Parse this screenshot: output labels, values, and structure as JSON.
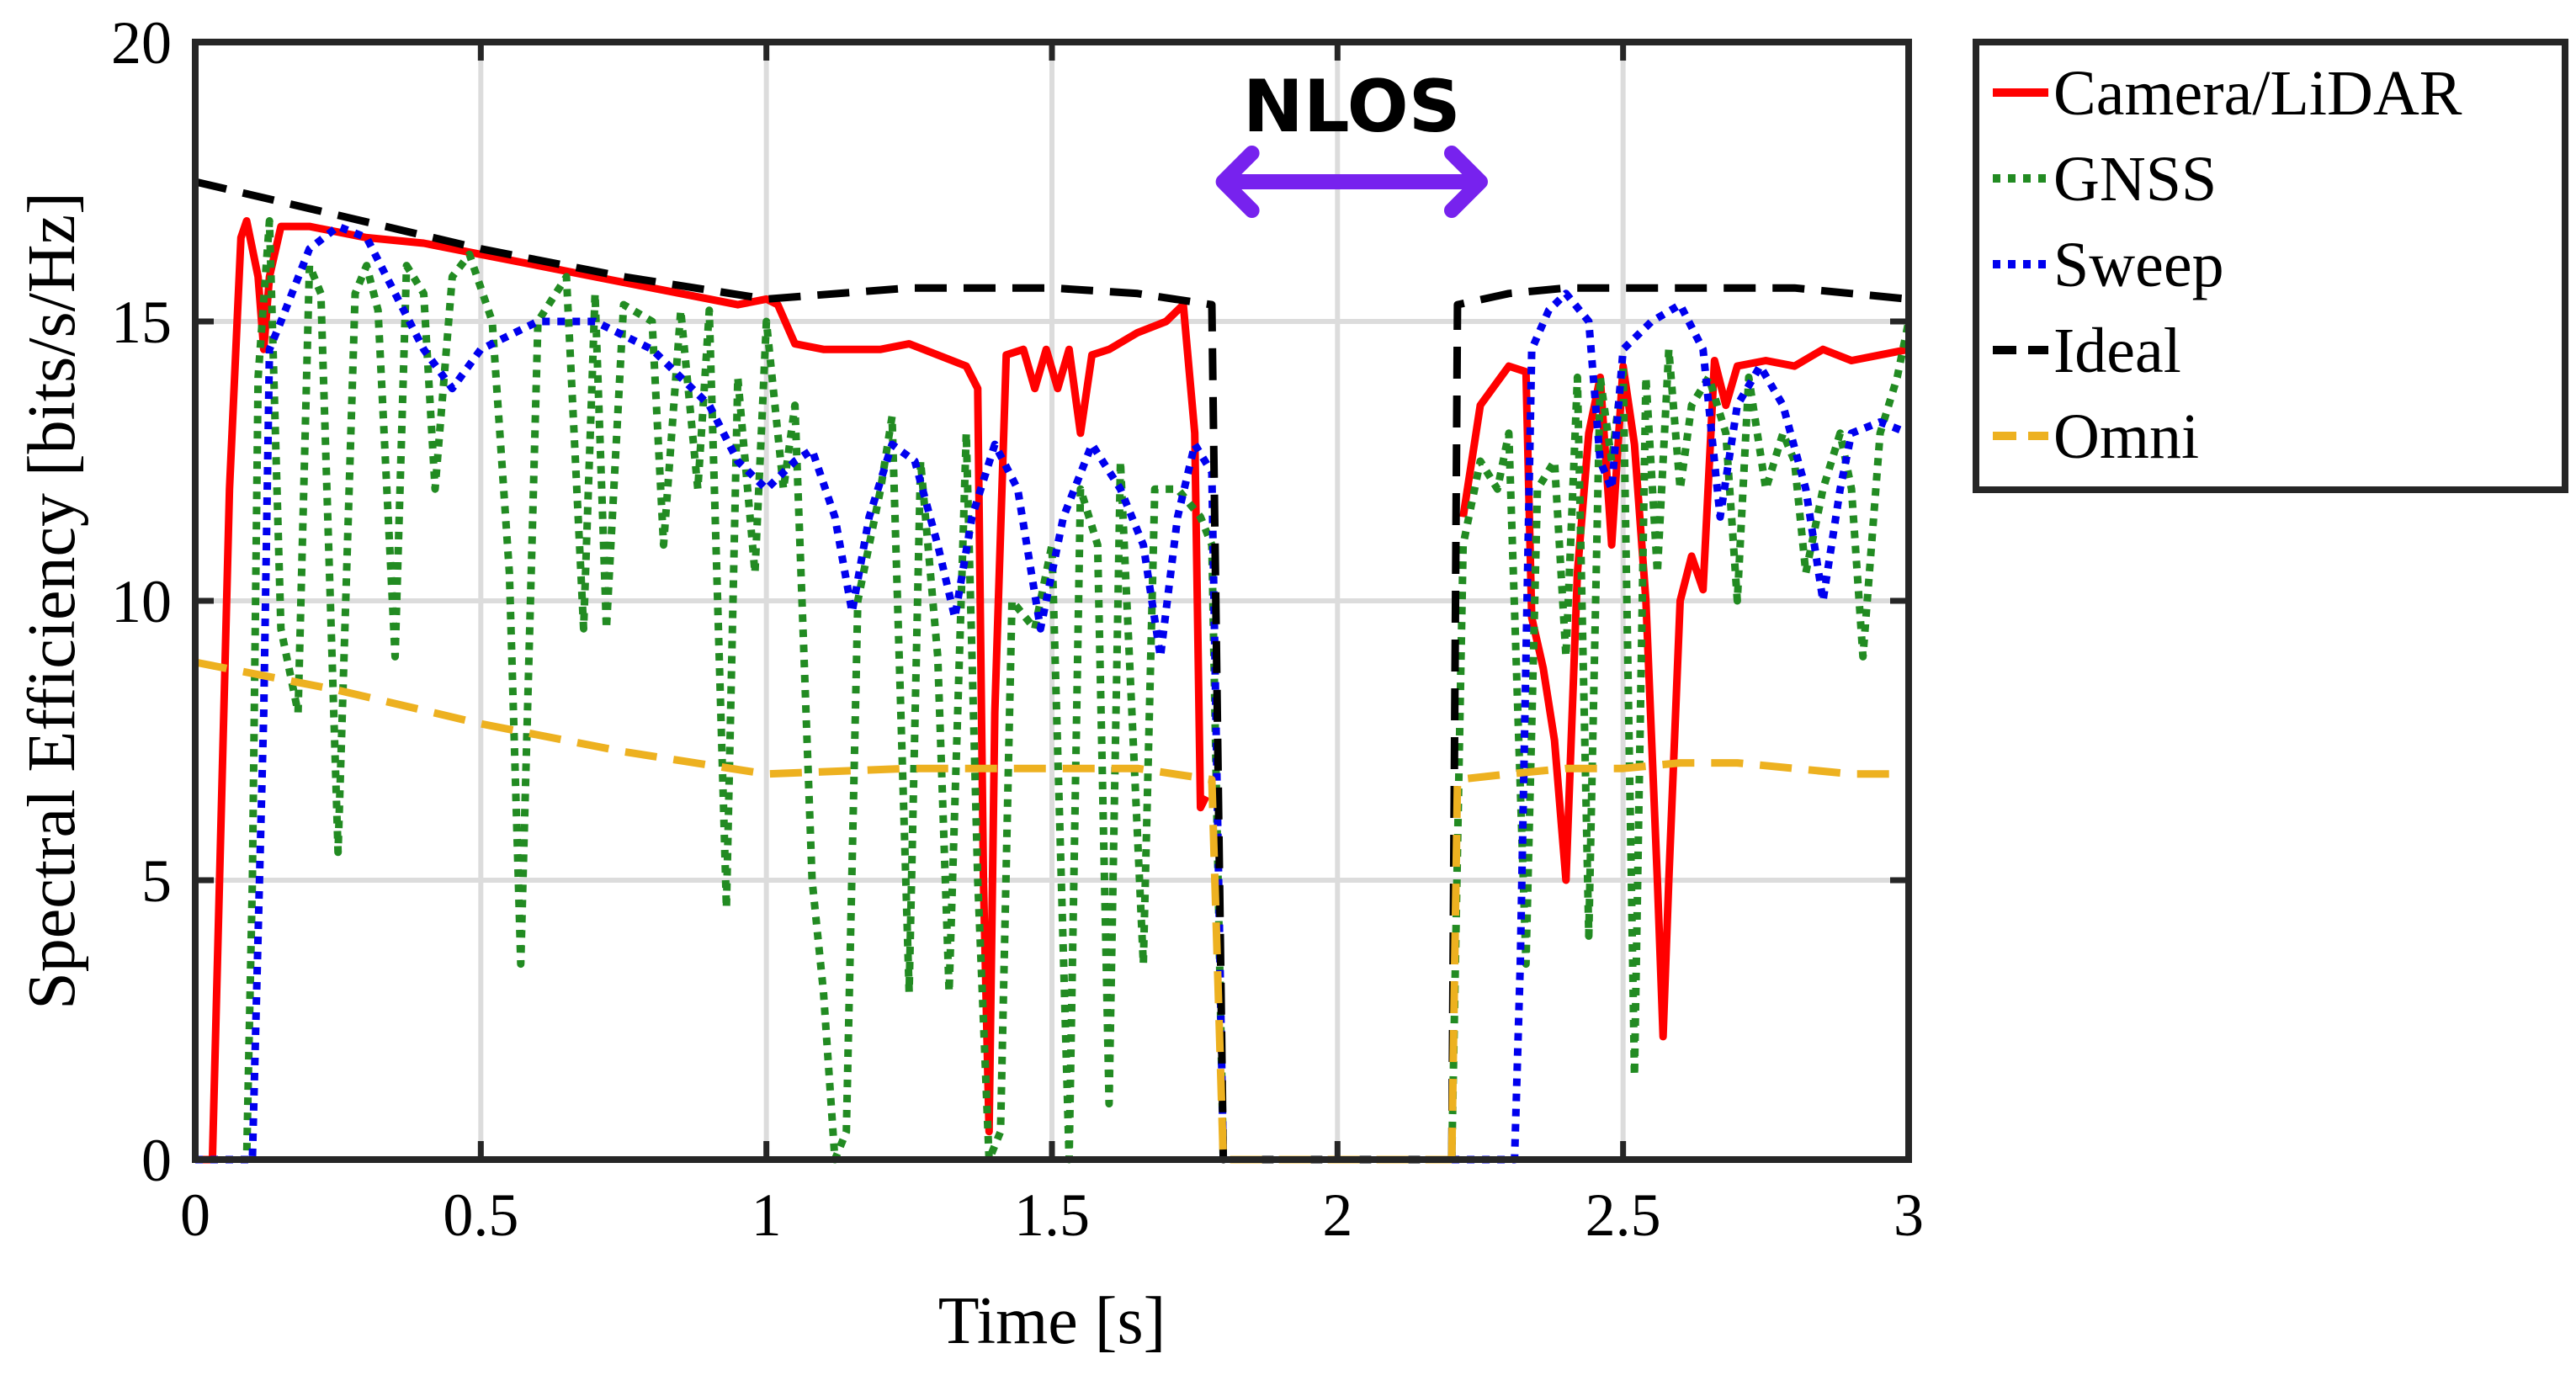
{
  "chart_data": {
    "type": "line",
    "title": "",
    "xlabel": "Time [s]",
    "ylabel": "Spectral Efficiency [bits/s/Hz]",
    "xlim": [
      0,
      3
    ],
    "ylim": [
      0,
      20
    ],
    "xticks": [
      0,
      0.5,
      1,
      1.5,
      2,
      2.5,
      3
    ],
    "xtick_labels": [
      "0",
      "0.5",
      "1",
      "1.5",
      "2",
      "2.5",
      "3"
    ],
    "yticks": [
      0,
      5,
      10,
      15,
      20
    ],
    "ytick_labels": [
      "0",
      "5",
      "10",
      "15",
      "20"
    ],
    "grid": true,
    "legend_position": "outside-top-right",
    "annotation": {
      "text": "NLOS",
      "x_start": 1.8,
      "x_end": 2.25,
      "y": 17.5,
      "color": "#7722ee"
    },
    "series": [
      {
        "name": "Camera/LiDAR",
        "color": "#ff0000",
        "style": "solid",
        "points": [
          [
            0,
            0
          ],
          [
            0.03,
            0
          ],
          [
            0.06,
            12
          ],
          [
            0.08,
            16.5
          ],
          [
            0.09,
            16.8
          ],
          [
            0.11,
            15.8
          ],
          [
            0.12,
            14.5
          ],
          [
            0.13,
            15.8
          ],
          [
            0.15,
            16.7
          ],
          [
            0.2,
            16.7
          ],
          [
            0.3,
            16.5
          ],
          [
            0.4,
            16.4
          ],
          [
            0.5,
            16.2
          ],
          [
            0.6,
            16.0
          ],
          [
            0.7,
            15.8
          ],
          [
            0.8,
            15.6
          ],
          [
            0.9,
            15.4
          ],
          [
            0.95,
            15.3
          ],
          [
            1.0,
            15.4
          ],
          [
            1.02,
            15.3
          ],
          [
            1.05,
            14.6
          ],
          [
            1.1,
            14.5
          ],
          [
            1.2,
            14.5
          ],
          [
            1.25,
            14.6
          ],
          [
            1.3,
            14.4
          ],
          [
            1.35,
            14.2
          ],
          [
            1.37,
            13.8
          ],
          [
            1.38,
            5
          ],
          [
            1.39,
            0.5
          ],
          [
            1.4,
            8
          ],
          [
            1.42,
            14.4
          ],
          [
            1.45,
            14.5
          ],
          [
            1.47,
            13.8
          ],
          [
            1.49,
            14.5
          ],
          [
            1.51,
            13.8
          ],
          [
            1.53,
            14.5
          ],
          [
            1.55,
            13.0
          ],
          [
            1.57,
            14.4
          ],
          [
            1.6,
            14.5
          ],
          [
            1.65,
            14.8
          ],
          [
            1.7,
            15.0
          ],
          [
            1.73,
            15.3
          ],
          [
            1.75,
            13.0
          ],
          [
            1.76,
            6.3
          ],
          [
            1.77,
            6.5
          ]
        ]
      },
      {
        "name": "GNSS",
        "color": "#228b22",
        "style": "dotted",
        "points": [
          [
            0,
            0
          ],
          [
            0.09,
            0
          ],
          [
            0.1,
            5
          ],
          [
            0.11,
            14
          ],
          [
            0.13,
            16.8
          ],
          [
            0.15,
            9.5
          ],
          [
            0.18,
            8.0
          ],
          [
            0.2,
            16.0
          ],
          [
            0.22,
            15.5
          ],
          [
            0.25,
            5.5
          ],
          [
            0.28,
            15.5
          ],
          [
            0.3,
            16.0
          ],
          [
            0.32,
            15.2
          ],
          [
            0.35,
            9.0
          ],
          [
            0.37,
            16.0
          ],
          [
            0.4,
            15.5
          ],
          [
            0.42,
            12.0
          ],
          [
            0.45,
            15.8
          ],
          [
            0.48,
            16.2
          ],
          [
            0.52,
            15.0
          ],
          [
            0.55,
            10.5
          ],
          [
            0.57,
            3.5
          ],
          [
            0.6,
            15.0
          ],
          [
            0.65,
            15.8
          ],
          [
            0.68,
            9.5
          ],
          [
            0.7,
            15.5
          ],
          [
            0.72,
            9.5
          ],
          [
            0.75,
            15.3
          ],
          [
            0.8,
            15.0
          ],
          [
            0.82,
            11.0
          ],
          [
            0.85,
            15.2
          ],
          [
            0.88,
            12.0
          ],
          [
            0.9,
            15.2
          ],
          [
            0.93,
            4.5
          ],
          [
            0.95,
            14.0
          ],
          [
            0.98,
            10.5
          ],
          [
            1.0,
            15.0
          ],
          [
            1.03,
            12.0
          ],
          [
            1.05,
            13.5
          ],
          [
            1.08,
            5.0
          ],
          [
            1.1,
            3.0
          ],
          [
            1.12,
            0
          ],
          [
            1.14,
            0.5
          ],
          [
            1.16,
            10.0
          ],
          [
            1.2,
            12.0
          ],
          [
            1.22,
            13.3
          ],
          [
            1.25,
            3.0
          ],
          [
            1.27,
            12.5
          ],
          [
            1.3,
            9.0
          ],
          [
            1.32,
            3.0
          ],
          [
            1.35,
            13.0
          ],
          [
            1.37,
            5.0
          ],
          [
            1.39,
            0
          ],
          [
            1.41,
            0.5
          ],
          [
            1.43,
            10.0
          ],
          [
            1.47,
            9.5
          ],
          [
            1.5,
            11.0
          ],
          [
            1.53,
            0
          ],
          [
            1.55,
            12.0
          ],
          [
            1.58,
            11.0
          ],
          [
            1.6,
            1.0
          ],
          [
            1.62,
            12.5
          ],
          [
            1.66,
            3.5
          ],
          [
            1.68,
            12.0
          ],
          [
            1.72,
            12.0
          ],
          [
            1.76,
            11.5
          ],
          [
            1.78,
            11.0
          ],
          [
            1.8,
            0
          ]
        ]
      },
      {
        "name": "Sweep",
        "color": "#0000ee",
        "style": "dotted",
        "points": [
          [
            0,
            0
          ],
          [
            0.1,
            0
          ],
          [
            0.12,
            8
          ],
          [
            0.13,
            14.5
          ],
          [
            0.15,
            15.0
          ],
          [
            0.2,
            16.3
          ],
          [
            0.25,
            16.7
          ],
          [
            0.3,
            16.5
          ],
          [
            0.35,
            15.5
          ],
          [
            0.4,
            14.5
          ],
          [
            0.45,
            13.8
          ],
          [
            0.5,
            14.5
          ],
          [
            0.6,
            15.0
          ],
          [
            0.7,
            15.0
          ],
          [
            0.8,
            14.5
          ],
          [
            0.9,
            13.5
          ],
          [
            0.95,
            12.5
          ],
          [
            1.0,
            12.0
          ],
          [
            1.05,
            12.5
          ],
          [
            1.08,
            12.7
          ],
          [
            1.12,
            11.5
          ],
          [
            1.15,
            9.8
          ],
          [
            1.18,
            11.5
          ],
          [
            1.22,
            12.8
          ],
          [
            1.26,
            12.5
          ],
          [
            1.3,
            11.0
          ],
          [
            1.33,
            9.7
          ],
          [
            1.36,
            11.5
          ],
          [
            1.4,
            12.8
          ],
          [
            1.44,
            12.0
          ],
          [
            1.48,
            9.5
          ],
          [
            1.52,
            11.5
          ],
          [
            1.57,
            12.8
          ],
          [
            1.62,
            12.0
          ],
          [
            1.66,
            11.0
          ],
          [
            1.69,
            9.0
          ],
          [
            1.72,
            11.5
          ],
          [
            1.75,
            12.8
          ],
          [
            1.78,
            12.3
          ],
          [
            1.8,
            0
          ]
        ]
      },
      {
        "name": "Ideal",
        "color": "#000000",
        "style": "dashed",
        "points": [
          [
            0,
            17.5
          ],
          [
            0.25,
            16.9
          ],
          [
            0.5,
            16.3
          ],
          [
            0.75,
            15.8
          ],
          [
            1.0,
            15.4
          ],
          [
            1.25,
            15.6
          ],
          [
            1.5,
            15.6
          ],
          [
            1.65,
            15.5
          ],
          [
            1.78,
            15.3
          ],
          [
            1.8,
            0
          ],
          [
            2.2,
            0
          ]
        ]
      },
      {
        "name": "Omni",
        "color": "#edb120",
        "style": "dashed",
        "points": [
          [
            0,
            8.9
          ],
          [
            0.25,
            8.4
          ],
          [
            0.5,
            7.8
          ],
          [
            0.75,
            7.3
          ],
          [
            1.0,
            6.9
          ],
          [
            1.25,
            7.0
          ],
          [
            1.5,
            7.0
          ],
          [
            1.65,
            7.0
          ],
          [
            1.78,
            6.8
          ],
          [
            1.8,
            0
          ],
          [
            2.2,
            0
          ]
        ]
      },
      {
        "name": "Camera/LiDAR",
        "color": "#ff0000",
        "style": "solid",
        "points": [
          [
            2.22,
            11.5
          ],
          [
            2.25,
            13.5
          ],
          [
            2.3,
            14.2
          ],
          [
            2.33,
            14.1
          ],
          [
            2.34,
            9.7
          ],
          [
            2.36,
            8.8
          ],
          [
            2.38,
            7.5
          ],
          [
            2.4,
            5.0
          ],
          [
            2.42,
            10.5
          ],
          [
            2.44,
            13.0
          ],
          [
            2.46,
            14.0
          ],
          [
            2.48,
            11.0
          ],
          [
            2.5,
            14.2
          ],
          [
            2.52,
            12.8
          ],
          [
            2.54,
            10.0
          ],
          [
            2.56,
            5.0
          ],
          [
            2.57,
            2.2
          ],
          [
            2.58,
            5.0
          ],
          [
            2.6,
            10.0
          ],
          [
            2.62,
            10.8
          ],
          [
            2.64,
            10.2
          ],
          [
            2.66,
            14.3
          ],
          [
            2.68,
            13.5
          ],
          [
            2.7,
            14.2
          ],
          [
            2.75,
            14.3
          ],
          [
            2.8,
            14.2
          ],
          [
            2.85,
            14.5
          ],
          [
            2.9,
            14.3
          ],
          [
            2.95,
            14.4
          ],
          [
            3.0,
            14.5
          ]
        ]
      },
      {
        "name": "GNSS",
        "color": "#228b22",
        "style": "dotted",
        "points": [
          [
            2.2,
            0
          ],
          [
            2.22,
            11.0
          ],
          [
            2.25,
            12.5
          ],
          [
            2.28,
            12.0
          ],
          [
            2.3,
            13.0
          ],
          [
            2.33,
            3.5
          ],
          [
            2.35,
            12.0
          ],
          [
            2.38,
            12.5
          ],
          [
            2.4,
            9.0
          ],
          [
            2.42,
            14.0
          ],
          [
            2.44,
            4.0
          ],
          [
            2.46,
            14.0
          ],
          [
            2.48,
            12.5
          ],
          [
            2.5,
            14.2
          ],
          [
            2.52,
            1.5
          ],
          [
            2.54,
            14.0
          ],
          [
            2.56,
            10.5
          ],
          [
            2.58,
            14.5
          ],
          [
            2.6,
            12.0
          ],
          [
            2.62,
            13.5
          ],
          [
            2.65,
            14.0
          ],
          [
            2.68,
            13.0
          ],
          [
            2.7,
            10.0
          ],
          [
            2.72,
            14.0
          ],
          [
            2.75,
            12.0
          ],
          [
            2.78,
            13.0
          ],
          [
            2.8,
            12.5
          ],
          [
            2.82,
            10.5
          ],
          [
            2.85,
            12.0
          ],
          [
            2.88,
            13.0
          ],
          [
            2.9,
            12.0
          ],
          [
            2.92,
            9.0
          ],
          [
            2.95,
            13.0
          ],
          [
            2.98,
            14.0
          ],
          [
            3.0,
            15.0
          ]
        ]
      },
      {
        "name": "Sweep",
        "color": "#0000ee",
        "style": "dotted",
        "points": [
          [
            2.2,
            0
          ],
          [
            2.31,
            0
          ],
          [
            2.32,
            3.5
          ],
          [
            2.34,
            14.5
          ],
          [
            2.37,
            15.2
          ],
          [
            2.4,
            15.5
          ],
          [
            2.44,
            15.0
          ],
          [
            2.46,
            12.5
          ],
          [
            2.48,
            12.0
          ],
          [
            2.5,
            14.5
          ],
          [
            2.55,
            15.0
          ],
          [
            2.6,
            15.3
          ],
          [
            2.64,
            14.5
          ],
          [
            2.67,
            11.5
          ],
          [
            2.7,
            13.5
          ],
          [
            2.74,
            14.2
          ],
          [
            2.78,
            13.5
          ],
          [
            2.82,
            12.0
          ],
          [
            2.85,
            10.0
          ],
          [
            2.88,
            12.0
          ],
          [
            2.9,
            13.0
          ],
          [
            2.95,
            13.2
          ],
          [
            3.0,
            13.0
          ]
        ]
      },
      {
        "name": "Ideal",
        "color": "#000000",
        "style": "dashed",
        "points": [
          [
            2.2,
            0
          ],
          [
            2.21,
            15.3
          ],
          [
            2.3,
            15.5
          ],
          [
            2.4,
            15.6
          ],
          [
            2.5,
            15.6
          ],
          [
            2.6,
            15.6
          ],
          [
            2.7,
            15.6
          ],
          [
            2.8,
            15.6
          ],
          [
            2.9,
            15.5
          ],
          [
            3.0,
            15.4
          ]
        ]
      },
      {
        "name": "Omni",
        "color": "#edb120",
        "style": "dashed",
        "points": [
          [
            2.2,
            0
          ],
          [
            2.21,
            6.8
          ],
          [
            2.3,
            6.9
          ],
          [
            2.4,
            7.0
          ],
          [
            2.5,
            7.0
          ],
          [
            2.6,
            7.1
          ],
          [
            2.7,
            7.1
          ],
          [
            2.8,
            7.0
          ],
          [
            2.9,
            6.9
          ],
          [
            3.0,
            6.9
          ]
        ]
      }
    ],
    "legend": [
      {
        "name": "Camera/LiDAR",
        "color": "#ff0000",
        "style": "solid"
      },
      {
        "name": "GNSS",
        "color": "#228b22",
        "style": "dotted"
      },
      {
        "name": "Sweep",
        "color": "#0000ee",
        "style": "dotted"
      },
      {
        "name": "Ideal",
        "color": "#000000",
        "style": "dashed"
      },
      {
        "name": "Omni",
        "color": "#edb120",
        "style": "dashed"
      }
    ]
  }
}
